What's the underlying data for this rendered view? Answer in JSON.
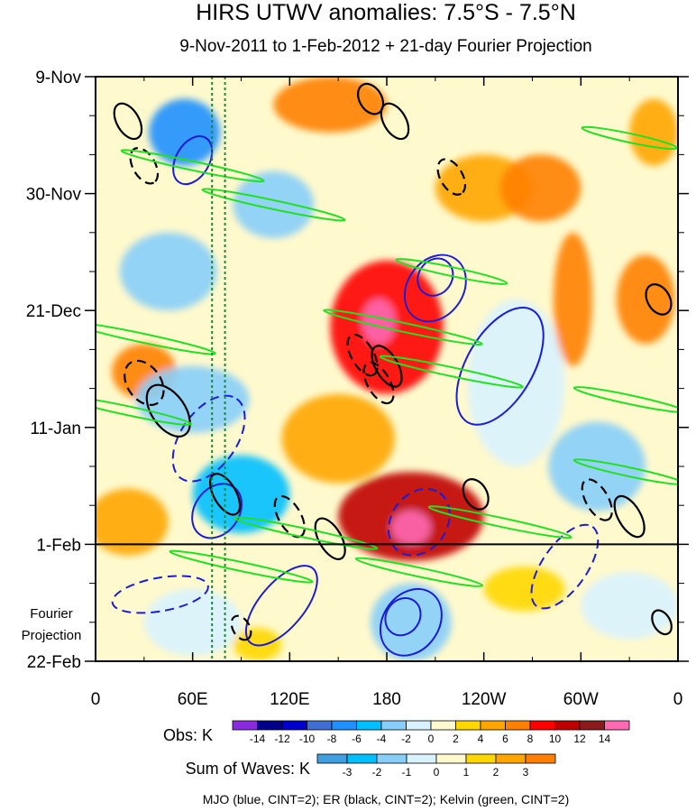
{
  "chart_data": {
    "type": "heatmap",
    "title": "HIRS UTWV anomalies: 7.5°S - 7.5°N",
    "subtitle": "9-Nov-2011 to 1-Feb-2012 + 21-day Fourier Projection",
    "xlabel": "",
    "ylabel": "",
    "x_ticks": [
      "0",
      "60E",
      "120E",
      "180",
      "120W",
      "60W",
      "0"
    ],
    "x_tick_values": [
      0,
      60,
      120,
      180,
      240,
      300,
      360
    ],
    "xlim": [
      0,
      360
    ],
    "y_ticks": [
      "9-Nov",
      "30-Nov",
      "21-Dec",
      "11-Jan",
      "1-Feb",
      "22-Feb"
    ],
    "y_tick_values": [
      0,
      21,
      42,
      63,
      84,
      105
    ],
    "ylim": [
      0,
      105
    ],
    "projection_start_day": 84,
    "projection_label_line1": "Fourier",
    "projection_label_line2": "Projection",
    "reference_lines_lon": [
      72,
      80
    ],
    "footer": "MJO (blue, CINT=2); ER (black, CINT=2); Kelvin (green, CINT=2)",
    "obs_colorbar": {
      "label": "Obs: K",
      "levels": [
        "-14",
        "-12",
        "-10",
        "-8",
        "-6",
        "-4",
        "-2",
        "0",
        "2",
        "4",
        "6",
        "8",
        "10",
        "12",
        "14"
      ],
      "colors": [
        "#8a2be2",
        "#00008b",
        "#0000cd",
        "#3f6fd4",
        "#1e90ff",
        "#00bfff",
        "#87cefa",
        "#d8f2ff",
        "#fffacd",
        "#ffd700",
        "#ffa500",
        "#ff7f00",
        "#ff0000",
        "#c00000",
        "#8b1a1a",
        "#ff69b4"
      ]
    },
    "waves_colorbar": {
      "label": "Sum of Waves: K",
      "levels": [
        "-3",
        "-2",
        "-1",
        "0",
        "1",
        "2",
        "3"
      ],
      "colors": [
        "#3f9fe0",
        "#00bfff",
        "#87cefa",
        "#d8f2ff",
        "#fffacd",
        "#ffd700",
        "#ffa500",
        "#ff7f00"
      ]
    },
    "anomaly_blobs": [
      {
        "lon": 55,
        "day": 10,
        "rx": 22,
        "ry": 6,
        "value": -8
      },
      {
        "lon": 45,
        "day": 35,
        "rx": 30,
        "ry": 7,
        "value": -4
      },
      {
        "lon": 110,
        "day": 23,
        "rx": 25,
        "ry": 6,
        "value": -4
      },
      {
        "lon": 30,
        "day": 53,
        "rx": 20,
        "ry": 5,
        "value": 6
      },
      {
        "lon": 60,
        "day": 58,
        "rx": 35,
        "ry": 6,
        "value": -4
      },
      {
        "lon": 90,
        "day": 75,
        "rx": 30,
        "ry": 7,
        "value": -6
      },
      {
        "lon": 145,
        "day": 5,
        "rx": 35,
        "ry": 5,
        "value": 6
      },
      {
        "lon": 180,
        "day": 45,
        "rx": 35,
        "ry": 12,
        "value": 8
      },
      {
        "lon": 175,
        "day": 44,
        "rx": 10,
        "ry": 4,
        "value": 14
      },
      {
        "lon": 195,
        "day": 79,
        "rx": 45,
        "ry": 8,
        "value": 10
      },
      {
        "lon": 195,
        "day": 81,
        "rx": 12,
        "ry": 3,
        "value": 14
      },
      {
        "lon": 150,
        "day": 65,
        "rx": 35,
        "ry": 8,
        "value": 4
      },
      {
        "lon": 240,
        "day": 20,
        "rx": 30,
        "ry": 6,
        "value": 4
      },
      {
        "lon": 260,
        "day": 55,
        "rx": 30,
        "ry": 15,
        "value": -2
      },
      {
        "lon": 275,
        "day": 20,
        "rx": 25,
        "ry": 6,
        "value": 6
      },
      {
        "lon": 310,
        "day": 70,
        "rx": 30,
        "ry": 8,
        "value": -4
      },
      {
        "lon": 295,
        "day": 40,
        "rx": 12,
        "ry": 12,
        "value": 6
      },
      {
        "lon": 340,
        "day": 40,
        "rx": 18,
        "ry": 8,
        "value": 6
      },
      {
        "lon": 345,
        "day": 10,
        "rx": 15,
        "ry": 6,
        "value": 4
      },
      {
        "lon": 20,
        "day": 80,
        "rx": 25,
        "ry": 6,
        "value": 4
      },
      {
        "lon": 60,
        "day": 98,
        "rx": 30,
        "ry": 6,
        "value": -1
      },
      {
        "lon": 195,
        "day": 98,
        "rx": 25,
        "ry": 7,
        "value": -3
      },
      {
        "lon": 265,
        "day": 92,
        "rx": 25,
        "ry": 4,
        "value": 2
      },
      {
        "lon": 100,
        "day": 102,
        "rx": 15,
        "ry": 3,
        "value": 2
      },
      {
        "lon": 330,
        "day": 95,
        "rx": 30,
        "ry": 6,
        "value": -1
      }
    ],
    "mjo_contours": [
      {
        "lon": 60,
        "day": 15,
        "rx": 16,
        "ry": 3,
        "angle": -60,
        "style": "solid"
      },
      {
        "lon": 210,
        "day": 38,
        "rx": 22,
        "ry": 5,
        "angle": -55,
        "style": "solid"
      },
      {
        "lon": 210,
        "day": 36,
        "rx": 12,
        "ry": 3,
        "angle": -55,
        "style": "solid"
      },
      {
        "lon": 250,
        "day": 52,
        "rx": 40,
        "ry": 6,
        "angle": -60,
        "style": "solid"
      },
      {
        "lon": 70,
        "day": 65,
        "rx": 30,
        "ry": 5,
        "angle": -55,
        "style": "dashed"
      },
      {
        "lon": 75,
        "day": 78,
        "rx": 18,
        "ry": 4,
        "angle": -55,
        "style": "solid"
      },
      {
        "lon": 200,
        "day": 80,
        "rx": 22,
        "ry": 5,
        "angle": -55,
        "style": "dashed"
      },
      {
        "lon": 195,
        "day": 98,
        "rx": 22,
        "ry": 5,
        "angle": -55,
        "style": "solid"
      },
      {
        "lon": 190,
        "day": 97,
        "rx": 12,
        "ry": 3,
        "angle": -55,
        "style": "solid"
      },
      {
        "lon": 115,
        "day": 95,
        "rx": 30,
        "ry": 4,
        "angle": -50,
        "style": "solid"
      },
      {
        "lon": 290,
        "day": 88,
        "rx": 30,
        "ry": 4,
        "angle": -55,
        "style": "dashed"
      },
      {
        "lon": 40,
        "day": 93,
        "rx": 30,
        "ry": 3,
        "angle": -10,
        "style": "dashed"
      }
    ],
    "er_contours": [
      {
        "lon": 20,
        "day": 8,
        "rx": 12,
        "ry": 2,
        "angle": 60,
        "style": "solid"
      },
      {
        "lon": 30,
        "day": 16,
        "rx": 12,
        "ry": 2,
        "angle": 60,
        "style": "dashed"
      },
      {
        "lon": 170,
        "day": 4,
        "rx": 10,
        "ry": 2,
        "angle": 60,
        "style": "solid"
      },
      {
        "lon": 185,
        "day": 8,
        "rx": 12,
        "ry": 2,
        "angle": 60,
        "style": "solid"
      },
      {
        "lon": 220,
        "day": 18,
        "rx": 12,
        "ry": 2,
        "angle": 60,
        "style": "dashed"
      },
      {
        "lon": 165,
        "day": 50,
        "rx": 14,
        "ry": 2,
        "angle": 60,
        "style": "dashed"
      },
      {
        "lon": 180,
        "day": 52,
        "rx": 14,
        "ry": 2,
        "angle": 60,
        "style": "solid"
      },
      {
        "lon": 175,
        "day": 55,
        "rx": 14,
        "ry": 2,
        "angle": 60,
        "style": "dashed"
      },
      {
        "lon": 30,
        "day": 55,
        "rx": 15,
        "ry": 3,
        "angle": 55,
        "style": "dashed"
      },
      {
        "lon": 45,
        "day": 60,
        "rx": 18,
        "ry": 3,
        "angle": 55,
        "style": "solid"
      },
      {
        "lon": 80,
        "day": 75,
        "rx": 14,
        "ry": 2,
        "angle": 60,
        "style": "solid"
      },
      {
        "lon": 120,
        "day": 79,
        "rx": 14,
        "ry": 2,
        "angle": 60,
        "style": "dashed"
      },
      {
        "lon": 145,
        "day": 83,
        "rx": 14,
        "ry": 2,
        "angle": 60,
        "style": "solid"
      },
      {
        "lon": 310,
        "day": 76,
        "rx": 14,
        "ry": 2,
        "angle": 60,
        "style": "dashed"
      },
      {
        "lon": 330,
        "day": 79,
        "rx": 14,
        "ry": 2,
        "angle": 60,
        "style": "solid"
      },
      {
        "lon": 348,
        "day": 40,
        "rx": 10,
        "ry": 2,
        "angle": 60,
        "style": "solid"
      },
      {
        "lon": 235,
        "day": 75,
        "rx": 10,
        "ry": 2,
        "angle": 60,
        "style": "solid"
      },
      {
        "lon": 350,
        "day": 98,
        "rx": 8,
        "ry": 1.5,
        "angle": 60,
        "style": "solid"
      },
      {
        "lon": 90,
        "day": 99,
        "rx": 8,
        "ry": 1.5,
        "angle": 60,
        "style": "dashed"
      }
    ],
    "kelvin_contours": [
      {
        "lon": 60,
        "day": 16,
        "rx": 45,
        "ry": 0.8,
        "angle": 12,
        "style": "solid"
      },
      {
        "lon": 110,
        "day": 23,
        "rx": 45,
        "ry": 0.8,
        "angle": 12,
        "style": "solid"
      },
      {
        "lon": 30,
        "day": 47,
        "rx": 45,
        "ry": 0.8,
        "angle": 12,
        "style": "solid"
      },
      {
        "lon": 190,
        "day": 45,
        "rx": 50,
        "ry": 0.8,
        "angle": 12,
        "style": "solid"
      },
      {
        "lon": 20,
        "day": 60,
        "rx": 40,
        "ry": 0.8,
        "angle": 12,
        "style": "solid"
      },
      {
        "lon": 220,
        "day": 53,
        "rx": 45,
        "ry": 0.8,
        "angle": 12,
        "style": "solid"
      },
      {
        "lon": 330,
        "day": 58,
        "rx": 35,
        "ry": 0.8,
        "angle": 12,
        "style": "solid"
      },
      {
        "lon": 250,
        "day": 80,
        "rx": 45,
        "ry": 0.8,
        "angle": 12,
        "style": "solid"
      },
      {
        "lon": 130,
        "day": 82,
        "rx": 45,
        "ry": 0.8,
        "angle": 12,
        "style": "solid"
      },
      {
        "lon": 330,
        "day": 71,
        "rx": 35,
        "ry": 0.8,
        "angle": 12,
        "style": "solid"
      },
      {
        "lon": 90,
        "day": 88,
        "rx": 45,
        "ry": 0.8,
        "angle": 12,
        "style": "solid"
      },
      {
        "lon": 200,
        "day": 89,
        "rx": 40,
        "ry": 0.8,
        "angle": 12,
        "style": "solid"
      },
      {
        "lon": 330,
        "day": 11,
        "rx": 30,
        "ry": 0.8,
        "angle": 12,
        "style": "solid"
      },
      {
        "lon": 220,
        "day": 35,
        "rx": 35,
        "ry": 0.8,
        "angle": 12,
        "style": "solid"
      }
    ]
  }
}
